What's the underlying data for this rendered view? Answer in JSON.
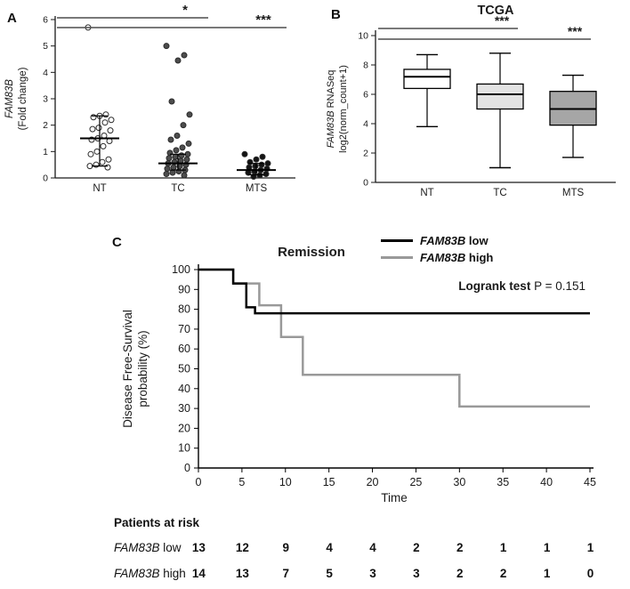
{
  "panels": {
    "a": {
      "label": "A"
    },
    "b": {
      "label": "B"
    },
    "c": {
      "label": "C"
    }
  },
  "legend": {
    "items": [
      {
        "gene": "FAM83B",
        "rest": " low",
        "color": "#000000"
      },
      {
        "gene": "FAM83B",
        "rest": " high",
        "color": "#999999"
      }
    ]
  },
  "chart_data": [
    {
      "id": "panel-a",
      "type": "scatter",
      "categories": [
        "NT",
        "TC",
        "MTS"
      ],
      "ylabel": {
        "gene": "FAM83B",
        "rest": "(Fold change)"
      },
      "ylim": [
        0,
        6
      ],
      "yticks": [
        0,
        1,
        2,
        3,
        4,
        5,
        6
      ],
      "points": {
        "NT": [
          5.7,
          2.4,
          2.35,
          2.3,
          2.2,
          2.1,
          1.9,
          1.85,
          1.8,
          1.6,
          1.5,
          1.45,
          1.4,
          1.2,
          1.0,
          0.9,
          0.7,
          0.6,
          0.5,
          0.45,
          0.4
        ],
        "TC": [
          5.0,
          4.65,
          4.45,
          2.9,
          2.4,
          2.0,
          1.6,
          1.45,
          1.3,
          1.15,
          1.05,
          0.95,
          0.9,
          0.85,
          0.8,
          0.75,
          0.7,
          0.65,
          0.6,
          0.55,
          0.5,
          0.45,
          0.4,
          0.35,
          0.3,
          0.25,
          0.2,
          0.15,
          0.1
        ],
        "MTS": [
          0.9,
          0.8,
          0.7,
          0.6,
          0.55,
          0.5,
          0.45,
          0.4,
          0.35,
          0.3,
          0.25,
          0.2,
          0.15,
          0.1,
          0.05
        ]
      },
      "medians": {
        "NT": 1.5,
        "TC": 0.55,
        "MTS": 0.3
      },
      "error_bars": {
        "NT": [
          0.45,
          2.35
        ],
        "TC": [
          0.3,
          0.9
        ],
        "MTS": [
          0.12,
          0.55
        ]
      },
      "marker_styles": {
        "NT": "open",
        "TC": "filled-dark",
        "MTS": "filled-black"
      },
      "significance": [
        {
          "from": "NT",
          "to": "TC",
          "label": "*"
        },
        {
          "from": "NT",
          "to": "MTS",
          "label": "***"
        }
      ]
    },
    {
      "id": "panel-b",
      "type": "box",
      "title": "TCGA",
      "categories": [
        "NT",
        "TC",
        "MTS"
      ],
      "ylabel": {
        "gene": "FAM83B",
        "rest": " RNASeq",
        "line2": "log2(norm_count+1)"
      },
      "ylim": [
        0,
        10
      ],
      "yticks": [
        0,
        2,
        4,
        6,
        8,
        10
      ],
      "boxes": [
        {
          "category": "NT",
          "whisker_low": 3.8,
          "q1": 6.4,
          "median": 7.2,
          "q3": 7.7,
          "whisker_high": 8.7,
          "fill": "#ffffff"
        },
        {
          "category": "TC",
          "whisker_low": 1.0,
          "q1": 5.0,
          "median": 6.0,
          "q3": 6.7,
          "whisker_high": 8.8,
          "fill": "#e3e3e3"
        },
        {
          "category": "MTS",
          "whisker_low": 1.7,
          "q1": 3.9,
          "median": 5.0,
          "q3": 6.2,
          "whisker_high": 7.3,
          "fill": "#a6a6a6"
        }
      ],
      "significance": [
        {
          "from": "NT",
          "to": "TC",
          "label": "***"
        },
        {
          "from": "NT",
          "to": "MTS",
          "label": "***"
        }
      ]
    },
    {
      "id": "panel-c",
      "type": "km_step",
      "title": "Remission",
      "xlabel": "Time",
      "ylabel_line1": "Disease Free-Survival",
      "ylabel_line2": "probability (%)",
      "xlim": [
        0,
        45
      ],
      "ylim": [
        0,
        100
      ],
      "xticks": [
        0,
        5,
        10,
        15,
        20,
        25,
        30,
        35,
        40,
        45
      ],
      "yticks": [
        0,
        10,
        20,
        30,
        40,
        50,
        60,
        70,
        80,
        90,
        100
      ],
      "annotation": {
        "bold": "Logrank test",
        "rest": " P = 0.151"
      },
      "series": [
        {
          "name": "FAM83B low",
          "color": "#000000",
          "steps": [
            [
              0,
              100
            ],
            [
              4,
              100
            ],
            [
              4,
              93
            ],
            [
              5.5,
              93
            ],
            [
              5.5,
              81
            ],
            [
              6.5,
              81
            ],
            [
              6.5,
              78
            ],
            [
              45,
              78
            ]
          ]
        },
        {
          "name": "FAM83B high",
          "color": "#999999",
          "steps": [
            [
              0,
              100
            ],
            [
              4,
              100
            ],
            [
              4,
              93
            ],
            [
              7,
              93
            ],
            [
              7,
              82
            ],
            [
              9.5,
              82
            ],
            [
              9.5,
              66
            ],
            [
              12,
              66
            ],
            [
              12,
              47
            ],
            [
              30,
              47
            ],
            [
              30,
              31
            ],
            [
              45,
              31
            ]
          ]
        }
      ]
    }
  ],
  "risk_table": {
    "title": "Patients at risk",
    "time_points": [
      0,
      5,
      10,
      15,
      20,
      25,
      30,
      35,
      40,
      45
    ],
    "rows": [
      {
        "gene": "FAM83B",
        "rest": " low",
        "values": [
          "13",
          "12",
          "9",
          "4",
          "4",
          "2",
          "2",
          "1",
          "1",
          "1"
        ]
      },
      {
        "gene": "FAM83B",
        "rest": " high",
        "values": [
          "14",
          "13",
          "7",
          "5",
          "3",
          "3",
          "2",
          "2",
          "1",
          "0"
        ]
      }
    ]
  }
}
